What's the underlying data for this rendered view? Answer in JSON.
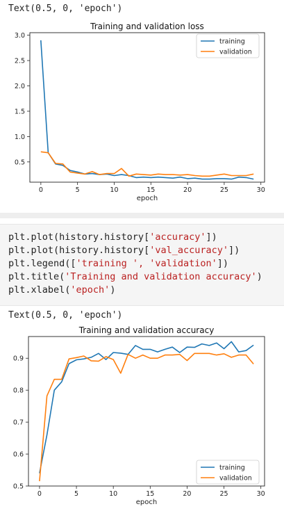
{
  "cells": {
    "out1_text": "Text(0.5, 0, 'epoch')",
    "code_lines": [
      {
        "pre": "plt.plot(history.history[",
        "str": "'accuracy'",
        "post": "])"
      },
      {
        "pre": "plt.plot(history.history[",
        "str": "'val_accuracy'",
        "post": "])"
      },
      {
        "pre": "plt.legend([",
        "str": "'training ', 'validation'",
        "post": "])"
      },
      {
        "pre": "plt.title(",
        "str": "'Training and validation accuracy'",
        "post": ")"
      },
      {
        "pre": "plt.xlabel(",
        "str": "'epoch'",
        "post": ")"
      }
    ],
    "out2_text": "Text(0.5, 0, 'epoch')"
  },
  "colors": {
    "training": "#1f77b4",
    "validation": "#ff7f0e"
  },
  "chart_data": [
    {
      "type": "line",
      "title": "Training and validation loss",
      "xlabel": "epoch",
      "ylabel": "",
      "xlim": [
        -1.5,
        30.5
      ],
      "ylim": [
        0.1,
        3.05
      ],
      "xticks": [
        0,
        5,
        10,
        15,
        20,
        25,
        30
      ],
      "yticks": [
        0.5,
        1.0,
        1.5,
        2.0,
        2.5,
        3.0
      ],
      "ytick_labels": [
        "0.5",
        "1.0",
        "1.5",
        "2.0",
        "2.5",
        "3.0"
      ],
      "legend_position": "top-right",
      "x": [
        0,
        1,
        2,
        3,
        4,
        5,
        6,
        7,
        8,
        9,
        10,
        11,
        12,
        13,
        14,
        15,
        16,
        17,
        18,
        19,
        20,
        21,
        22,
        23,
        24,
        25,
        26,
        27,
        28,
        29
      ],
      "series": [
        {
          "name": "training",
          "values": [
            2.9,
            0.68,
            0.46,
            0.43,
            0.33,
            0.3,
            0.26,
            0.27,
            0.25,
            0.26,
            0.23,
            0.25,
            0.23,
            0.19,
            0.2,
            0.19,
            0.2,
            0.19,
            0.18,
            0.2,
            0.17,
            0.18,
            0.16,
            0.16,
            0.17,
            0.17,
            0.16,
            0.2,
            0.19,
            0.16
          ]
        },
        {
          "name": "validation",
          "values": [
            0.7,
            0.68,
            0.47,
            0.46,
            0.3,
            0.28,
            0.26,
            0.31,
            0.25,
            0.27,
            0.27,
            0.37,
            0.22,
            0.26,
            0.25,
            0.24,
            0.26,
            0.25,
            0.25,
            0.24,
            0.25,
            0.23,
            0.22,
            0.22,
            0.24,
            0.26,
            0.23,
            0.23,
            0.23,
            0.26
          ]
        }
      ]
    },
    {
      "type": "line",
      "title": "Training and validation accuracy",
      "xlabel": "epoch",
      "ylabel": "",
      "xlim": [
        -1.5,
        30.5
      ],
      "ylim": [
        0.5,
        0.968
      ],
      "xticks": [
        0,
        5,
        10,
        15,
        20,
        25,
        30
      ],
      "yticks": [
        0.5,
        0.6,
        0.7,
        0.8,
        0.9
      ],
      "ytick_labels": [
        "0.5",
        "0.6",
        "0.7",
        "0.8",
        "0.9"
      ],
      "legend_position": "bottom-right",
      "x": [
        0,
        1,
        2,
        3,
        4,
        5,
        6,
        7,
        8,
        9,
        10,
        11,
        12,
        13,
        14,
        15,
        16,
        17,
        18,
        19,
        20,
        21,
        22,
        23,
        24,
        25,
        26,
        27,
        28,
        29
      ],
      "series": [
        {
          "name": "training",
          "values": [
            0.54,
            0.66,
            0.8,
            0.826,
            0.883,
            0.895,
            0.898,
            0.903,
            0.915,
            0.896,
            0.918,
            0.916,
            0.912,
            0.94,
            0.928,
            0.928,
            0.92,
            0.928,
            0.935,
            0.918,
            0.935,
            0.934,
            0.945,
            0.94,
            0.948,
            0.93,
            0.952,
            0.92,
            0.924,
            0.941
          ]
        },
        {
          "name": "validation",
          "values": [
            0.515,
            0.782,
            0.834,
            0.834,
            0.898,
            0.902,
            0.907,
            0.892,
            0.891,
            0.905,
            0.896,
            0.853,
            0.912,
            0.9,
            0.91,
            0.9,
            0.9,
            0.91,
            0.91,
            0.912,
            0.893,
            0.915,
            0.915,
            0.915,
            0.91,
            0.914,
            0.903,
            0.91,
            0.91,
            0.882
          ]
        }
      ]
    }
  ]
}
